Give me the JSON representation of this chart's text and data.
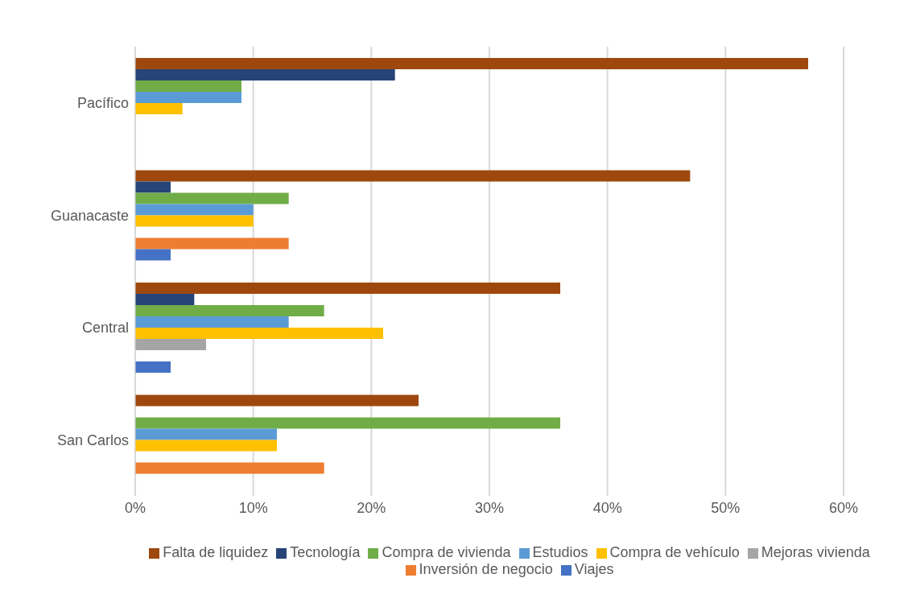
{
  "chart_data": {
    "type": "bar",
    "orientation": "horizontal",
    "categories": [
      "Pacífico",
      "Guanacaste",
      "Central",
      "San Carlos"
    ],
    "series": [
      {
        "name": "Falta de liquidez",
        "color": "#9e480e",
        "values": [
          57,
          47,
          36,
          24
        ]
      },
      {
        "name": "Tecnología",
        "color": "#264478",
        "values": [
          22,
          3,
          5,
          0
        ]
      },
      {
        "name": "Compra de vivienda",
        "color": "#70ad47",
        "values": [
          9,
          13,
          16,
          36
        ]
      },
      {
        "name": "Estudios",
        "color": "#5b9bd5",
        "values": [
          9,
          10,
          13,
          12
        ]
      },
      {
        "name": "Compra de vehículo",
        "color": "#ffc000",
        "values": [
          4,
          10,
          21,
          12
        ]
      },
      {
        "name": "Mejoras vivienda",
        "color": "#a5a5a5",
        "values": [
          0,
          0,
          6,
          0
        ]
      },
      {
        "name": "Inversión de negocio",
        "color": "#ed7d31",
        "values": [
          0,
          13,
          0,
          16
        ]
      },
      {
        "name": "Viajes",
        "color": "#4472c4",
        "values": [
          0,
          3,
          3,
          0
        ]
      }
    ],
    "xlim": [
      0,
      60
    ],
    "xticks": [
      {
        "value": 0,
        "label": "0%"
      },
      {
        "value": 10,
        "label": "10%"
      },
      {
        "value": 20,
        "label": "20%"
      },
      {
        "value": 30,
        "label": "30%"
      },
      {
        "value": 40,
        "label": "40%"
      },
      {
        "value": 50,
        "label": "50%"
      },
      {
        "value": 60,
        "label": "60%"
      }
    ],
    "grid": "x",
    "legend": "bottom"
  }
}
